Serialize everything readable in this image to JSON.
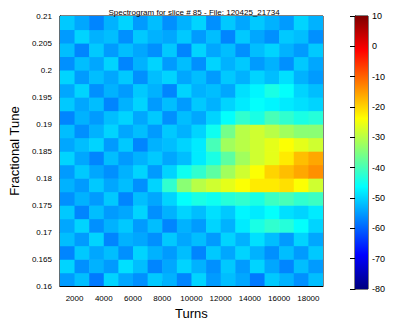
{
  "chart_data": {
    "type": "heatmap",
    "title": "Spectrogram for slice # 85 - File: 120425_21734",
    "x_label": "Turns",
    "y_label": "Fractional Tune",
    "xlim": [
      1000,
      19000
    ],
    "xticks": [
      2000,
      4000,
      6000,
      8000,
      10000,
      12000,
      14000,
      16000,
      18000
    ],
    "ylim": [
      0.16,
      0.21
    ],
    "yticks": [
      0.16,
      0.165,
      0.17,
      0.175,
      0.18,
      0.185,
      0.19,
      0.195,
      0.2,
      0.205,
      0.21
    ],
    "x": [
      1500,
      2500,
      3500,
      4500,
      5500,
      6500,
      7500,
      8500,
      9500,
      10500,
      11500,
      12500,
      13500,
      14500,
      15500,
      16500,
      17500,
      18500
    ],
    "y": [
      0.16125,
      0.16375,
      0.16625,
      0.16875,
      0.17125,
      0.17375,
      0.17625,
      0.17875,
      0.18125,
      0.18375,
      0.18625,
      0.18875,
      0.19125,
      0.19375,
      0.19625,
      0.19875,
      0.20125,
      0.20375,
      0.20625,
      0.20875
    ],
    "cells": [
      [
        -55,
        -52,
        -58,
        -50,
        -54,
        -56,
        -51,
        -53,
        -57,
        -50,
        -55,
        -52,
        -54,
        -58,
        -51,
        -53,
        -56,
        -52
      ],
      [
        -50,
        -56,
        -53,
        -55,
        -49,
        -52,
        -57,
        -54,
        -50,
        -53,
        -56,
        -51,
        -55,
        -50,
        -54,
        -57,
        -52,
        -55
      ],
      [
        -57,
        -51,
        -54,
        -52,
        -56,
        -50,
        -53,
        -55,
        -52,
        -57,
        -51,
        -54,
        -50,
        -53,
        -56,
        -52,
        -55,
        -51
      ],
      [
        -52,
        -55,
        -50,
        -57,
        -53,
        -54,
        -56,
        -51,
        -54,
        -52,
        -55,
        -50,
        -53,
        -49,
        -52,
        -55,
        -50,
        -54
      ],
      [
        -54,
        -50,
        -56,
        -53,
        -51,
        -55,
        -52,
        -57,
        -53,
        -55,
        -50,
        -53,
        -48,
        -44,
        -42,
        -43,
        -46,
        -50
      ],
      [
        -51,
        -57,
        -52,
        -55,
        -54,
        -50,
        -56,
        -53,
        -50,
        -52,
        -49,
        -51,
        -47,
        -48,
        -46,
        -49,
        -50,
        -48
      ],
      [
        -56,
        -53,
        -55,
        -51,
        -57,
        -52,
        -54,
        -50,
        -46,
        -44,
        -45,
        -43,
        -42,
        -44,
        -41,
        -40,
        -42,
        -41
      ],
      [
        -53,
        -55,
        -51,
        -54,
        -52,
        -56,
        -50,
        -42,
        -34,
        -30,
        -28,
        -26,
        -24,
        -22,
        -22,
        -21,
        -24,
        -28
      ],
      [
        -55,
        -51,
        -54,
        -56,
        -53,
        -50,
        -55,
        -50,
        -45,
        -42,
        -38,
        -32,
        -28,
        -24,
        -20,
        -18,
        -16,
        -14
      ],
      [
        -50,
        -54,
        -57,
        -52,
        -55,
        -53,
        -51,
        -54,
        -52,
        -48,
        -44,
        -38,
        -32,
        -28,
        -26,
        -22,
        -18,
        -16
      ],
      [
        -54,
        -52,
        -50,
        -55,
        -51,
        -57,
        -53,
        -52,
        -50,
        -48,
        -40,
        -32,
        -30,
        -28,
        -26,
        -24,
        -26,
        -28
      ],
      [
        -52,
        -56,
        -53,
        -50,
        -54,
        -52,
        -55,
        -51,
        -53,
        -50,
        -45,
        -36,
        -30,
        -28,
        -30,
        -32,
        -34,
        -34
      ],
      [
        -57,
        -53,
        -55,
        -52,
        -50,
        -54,
        -51,
        -56,
        -52,
        -54,
        -50,
        -46,
        -42,
        -44,
        -40,
        -42,
        -44,
        -43
      ],
      [
        -51,
        -54,
        -52,
        -57,
        -53,
        -50,
        -55,
        -52,
        -55,
        -51,
        -53,
        -50,
        -48,
        -46,
        -47,
        -48,
        -49,
        -50
      ],
      [
        -54,
        -50,
        -56,
        -53,
        -55,
        -51,
        -53,
        -57,
        -50,
        -53,
        -52,
        -54,
        -49,
        -47,
        -44,
        -46,
        -50,
        -52
      ],
      [
        -50,
        -55,
        -52,
        -54,
        -51,
        -56,
        -52,
        -50,
        -54,
        -52,
        -55,
        -51,
        -53,
        -50,
        -52,
        -49,
        -53,
        -55
      ],
      [
        -56,
        -52,
        -54,
        -50,
        -57,
        -53,
        -50,
        -55,
        -52,
        -56,
        -50,
        -53,
        -51,
        -55,
        -53,
        -56,
        -51,
        -54
      ],
      [
        -52,
        -57,
        -51,
        -55,
        -52,
        -54,
        -56,
        -51,
        -57,
        -50,
        -54,
        -52,
        -56,
        -52,
        -50,
        -53,
        -55,
        -51
      ],
      [
        -55,
        -50,
        -53,
        -52,
        -56,
        -51,
        -53,
        -54,
        -51,
        -55,
        -52,
        -57,
        -51,
        -54,
        -56,
        -51,
        -52,
        -56
      ],
      [
        -51,
        -54,
        -57,
        -53,
        -50,
        -55,
        -52,
        -56,
        -53,
        -50,
        -56,
        -51,
        -54,
        -51,
        -53,
        -55,
        -50,
        -53
      ]
    ],
    "colorbar": {
      "range": [
        -80,
        10
      ],
      "ticks": [
        -80,
        -70,
        -60,
        -50,
        -40,
        -30,
        -20,
        -10,
        0,
        10
      ]
    }
  }
}
